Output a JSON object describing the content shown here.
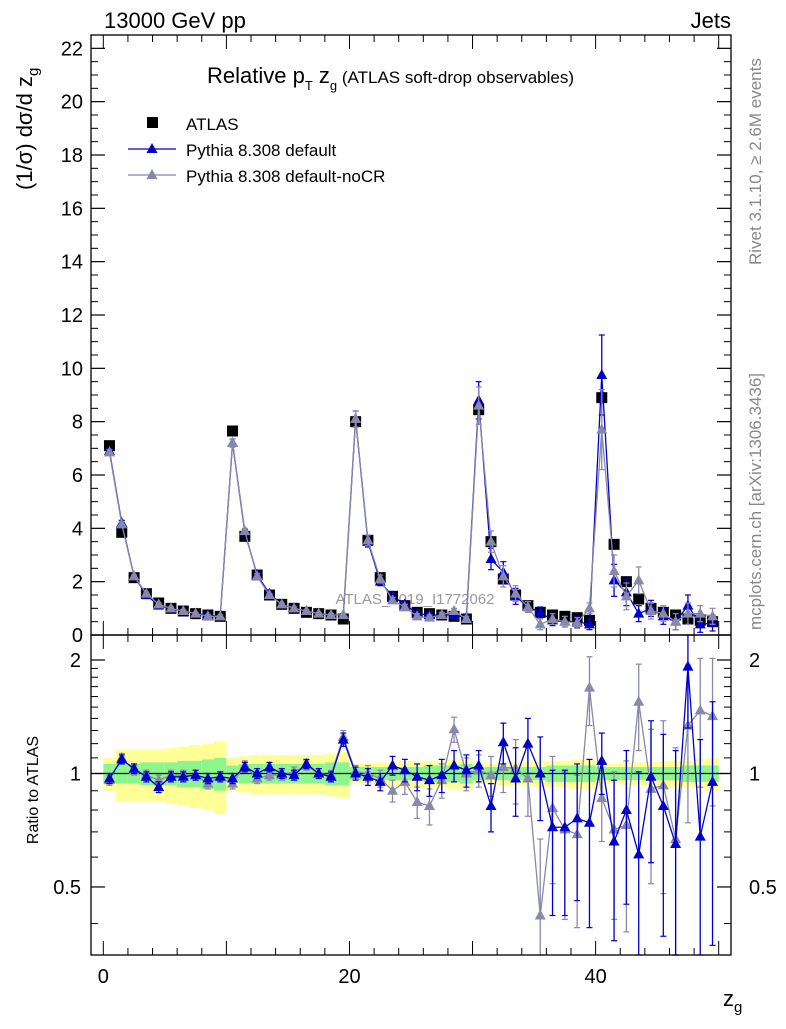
{
  "header": {
    "left": "13000 GeV pp",
    "right": "Jets"
  },
  "side_labels": {
    "rivet": "Rivet 3.1.10, ≥ 2.6M events",
    "mcplots": "mcplots.cern.ch [arXiv:1306.3436]"
  },
  "watermark": "ATLAS_2019_I1772062",
  "colors": {
    "atlas": "#000000",
    "default": "#0000cc",
    "nocr": "#8888aa",
    "band_inner": "#8cf58c",
    "band_outer": "#ffff96"
  },
  "chart_data": [
    {
      "type": "line",
      "title_main": "Relative p",
      "title_sub": "T",
      "title_mid": " z",
      "title_sub2": "g",
      "title_small": " (ATLAS soft-drop observables)",
      "ylabel_main": "(1/σ) dσ/d z",
      "ylabel_sub": "g",
      "xlim": [
        -1,
        51
      ],
      "ylim": [
        0,
        22.5
      ],
      "yticks": [
        0,
        2,
        4,
        6,
        8,
        10,
        12,
        14,
        16,
        18,
        20,
        22
      ],
      "legend_position": "top-left",
      "x": [
        0.5,
        1.5,
        2.5,
        3.5,
        4.5,
        5.5,
        6.5,
        7.5,
        8.5,
        9.5,
        10.5,
        11.5,
        12.5,
        13.5,
        14.5,
        15.5,
        16.5,
        17.5,
        18.5,
        19.5,
        20.5,
        21.5,
        22.5,
        23.5,
        24.5,
        25.5,
        26.5,
        27.5,
        28.5,
        29.5,
        30.5,
        31.5,
        32.5,
        33.5,
        34.5,
        35.5,
        36.5,
        37.5,
        38.5,
        39.5,
        40.5,
        41.5,
        42.5,
        43.5,
        44.5,
        45.5,
        46.5,
        47.5,
        48.5,
        49.5
      ],
      "series": [
        {
          "name": "ATLAS",
          "marker": "square",
          "values": [
            7.1,
            3.85,
            2.15,
            1.55,
            1.2,
            1.0,
            0.9,
            0.8,
            0.75,
            0.7,
            7.65,
            3.7,
            2.25,
            1.5,
            1.15,
            1.0,
            0.85,
            0.8,
            0.75,
            0.6,
            8.0,
            3.55,
            2.15,
            1.45,
            1.1,
            0.85,
            0.8,
            0.75,
            0.7,
            0.6,
            8.45,
            3.5,
            2.1,
            1.5,
            1.1,
            0.85,
            0.75,
            0.7,
            0.65,
            0.55,
            8.9,
            3.4,
            2.0,
            1.35,
            1.0,
            0.85,
            0.75,
            0.6,
            0.55,
            0.5
          ]
        },
        {
          "name": "Pythia 8.308 default",
          "marker": "triangle",
          "values": [
            6.9,
            4.2,
            2.2,
            1.5,
            1.1,
            1.0,
            0.9,
            0.8,
            0.75,
            0.7,
            7.2,
            3.85,
            2.25,
            1.55,
            1.15,
            1.0,
            0.9,
            0.8,
            0.75,
            0.75,
            8.1,
            3.5,
            2.0,
            1.45,
            1.15,
            0.8,
            0.75,
            0.75,
            0.75,
            0.65,
            8.8,
            2.85,
            2.35,
            1.45,
            1.05,
            0.85,
            0.55,
            0.5,
            0.5,
            0.4,
            9.75,
            2.05,
            1.6,
            0.8,
            1.0,
            0.7,
            0.5,
            1.1,
            0.4,
            0.45
          ]
        },
        {
          "name": "Pythia 8.308 default-noCR",
          "marker": "triangle",
          "values": [
            6.85,
            4.15,
            2.2,
            1.55,
            1.15,
            1.0,
            0.9,
            0.8,
            0.7,
            0.7,
            7.2,
            3.9,
            2.2,
            1.5,
            1.15,
            1.0,
            0.9,
            0.8,
            0.75,
            0.75,
            8.1,
            3.55,
            2.1,
            1.3,
            1.05,
            0.7,
            0.65,
            0.75,
            0.9,
            0.6,
            8.6,
            3.5,
            2.2,
            1.55,
            1.05,
            0.4,
            0.6,
            0.5,
            0.45,
            1.0,
            7.7,
            2.4,
            1.45,
            2.05,
            0.9,
            0.8,
            0.5,
            0.8,
            0.8,
            0.7
          ]
        }
      ],
      "errors": [
        [
          0.05,
          0.05,
          0.05,
          0.05,
          0.05,
          0.05,
          0.05,
          0.05,
          0.05,
          0.05,
          0.05,
          0.05,
          0.05,
          0.05,
          0.05,
          0.05,
          0.05,
          0.05,
          0.05,
          0.05,
          0.05,
          0.05,
          0.05,
          0.05,
          0.05,
          0.05,
          0.05,
          0.05,
          0.05,
          0.05,
          0.05,
          0.05,
          0.05,
          0.05,
          0.05,
          0.05,
          0.05,
          0.05,
          0.05,
          0.05,
          0.05,
          0.05,
          0.05,
          0.05,
          0.05,
          0.05,
          0.05,
          0.05,
          0.05,
          0.05
        ],
        [
          0.1,
          0.1,
          0.05,
          0.05,
          0.05,
          0.05,
          0.05,
          0.05,
          0.05,
          0.05,
          0.15,
          0.1,
          0.1,
          0.05,
          0.05,
          0.05,
          0.05,
          0.05,
          0.05,
          0.05,
          0.3,
          0.2,
          0.15,
          0.1,
          0.1,
          0.1,
          0.1,
          0.1,
          0.1,
          0.1,
          0.7,
          0.4,
          0.4,
          0.3,
          0.2,
          0.2,
          0.2,
          0.2,
          0.2,
          0.2,
          1.5,
          0.6,
          0.5,
          0.3,
          0.3,
          0.3,
          0.3,
          0.4,
          0.3,
          0.3
        ],
        [
          0.1,
          0.1,
          0.05,
          0.05,
          0.05,
          0.05,
          0.05,
          0.05,
          0.05,
          0.05,
          0.15,
          0.1,
          0.1,
          0.05,
          0.05,
          0.05,
          0.05,
          0.05,
          0.05,
          0.05,
          0.3,
          0.2,
          0.15,
          0.1,
          0.1,
          0.1,
          0.1,
          0.1,
          0.1,
          0.1,
          0.7,
          0.4,
          0.4,
          0.3,
          0.2,
          0.2,
          0.2,
          0.2,
          0.2,
          0.2,
          1.5,
          0.6,
          0.5,
          0.5,
          0.3,
          0.3,
          0.3,
          0.4,
          0.3,
          0.3
        ]
      ]
    },
    {
      "type": "line",
      "ylabel": "Ratio to ATLAS",
      "xlabel_main": "z",
      "xlabel_sub": "g",
      "ylim": [
        0.33,
        2.33
      ],
      "ylog": true,
      "yticks": [
        0.5,
        1,
        2
      ],
      "xticks": [
        0,
        20,
        40
      ],
      "band_inner": [
        0.06,
        0.06,
        0.06,
        0.07,
        0.07,
        0.07,
        0.08,
        0.08,
        0.09,
        0.1,
        0.05,
        0.06,
        0.06,
        0.06,
        0.06,
        0.06,
        0.06,
        0.06,
        0.07,
        0.07,
        0.04,
        0.04,
        0.04,
        0.04,
        0.04,
        0.04,
        0.05,
        0.05,
        0.05,
        0.06,
        0.04,
        0.04,
        0.04,
        0.04,
        0.04,
        0.04,
        0.05,
        0.05,
        0.05,
        0.05,
        0.04,
        0.04,
        0.04,
        0.04,
        0.04,
        0.04,
        0.04,
        0.05,
        0.05,
        0.05
      ],
      "band_outer": [
        0.1,
        0.16,
        0.16,
        0.16,
        0.16,
        0.17,
        0.18,
        0.19,
        0.2,
        0.22,
        0.1,
        0.11,
        0.12,
        0.12,
        0.12,
        0.12,
        0.12,
        0.12,
        0.13,
        0.14,
        0.06,
        0.06,
        0.07,
        0.07,
        0.08,
        0.08,
        0.08,
        0.08,
        0.09,
        0.09,
        0.06,
        0.06,
        0.07,
        0.07,
        0.07,
        0.08,
        0.08,
        0.08,
        0.09,
        0.09,
        0.06,
        0.06,
        0.07,
        0.07,
        0.07,
        0.08,
        0.08,
        0.08,
        0.09,
        0.1
      ],
      "series": [
        {
          "name": "Pythia 8.308 default",
          "values": [
            0.97,
            1.09,
            1.03,
            0.98,
            0.92,
            0.98,
            0.98,
            0.99,
            0.97,
            0.98,
            0.97,
            1.04,
            1.0,
            1.04,
            1.0,
            0.99,
            1.06,
            1.0,
            0.98,
            1.23,
            1.0,
            0.98,
            0.95,
            1.05,
            1.02,
            0.98,
            0.96,
            0.99,
            1.05,
            1.02,
            1.05,
            0.82,
            1.21,
            0.97,
            1.2,
            1.0,
            0.72,
            0.72,
            0.76,
            0.74,
            1.08,
            0.66,
            0.8,
            0.61,
            0.98,
            0.82,
            0.65,
            1.92,
            0.68,
            0.95
          ]
        },
        {
          "name": "Pythia 8.308 default-noCR",
          "values": [
            0.96,
            1.1,
            1.02,
            0.99,
            0.96,
            0.99,
            0.99,
            0.99,
            0.94,
            0.98,
            0.94,
            1.05,
            0.97,
            0.99,
            0.99,
            1.01,
            1.05,
            1.0,
            0.99,
            1.25,
            1.01,
            1.0,
            0.97,
            0.9,
            0.95,
            0.84,
            0.82,
            0.96,
            1.31,
            1.0,
            1.02,
            0.99,
            1.04,
            1.03,
            0.97,
            0.42,
            0.81,
            0.71,
            0.69,
            1.69,
            0.86,
            0.71,
            0.73,
            1.55,
            0.91,
            0.93,
            0.67,
            1.34,
            1.47,
            1.42
          ]
        }
      ],
      "errors": [
        [
          0.03,
          0.03,
          0.03,
          0.03,
          0.03,
          0.03,
          0.03,
          0.03,
          0.03,
          0.03,
          0.03,
          0.03,
          0.03,
          0.03,
          0.03,
          0.03,
          0.03,
          0.03,
          0.03,
          0.05,
          0.04,
          0.05,
          0.05,
          0.06,
          0.07,
          0.08,
          0.09,
          0.1,
          0.1,
          0.1,
          0.1,
          0.12,
          0.15,
          0.2,
          0.2,
          0.25,
          0.3,
          0.3,
          0.3,
          0.35,
          0.2,
          0.3,
          0.35,
          0.4,
          0.4,
          0.45,
          0.5,
          0.6,
          0.55,
          0.6
        ],
        [
          0.03,
          0.03,
          0.03,
          0.03,
          0.03,
          0.03,
          0.03,
          0.03,
          0.03,
          0.03,
          0.03,
          0.03,
          0.03,
          0.03,
          0.03,
          0.03,
          0.03,
          0.03,
          0.03,
          0.05,
          0.04,
          0.05,
          0.05,
          0.06,
          0.07,
          0.08,
          0.09,
          0.1,
          0.1,
          0.1,
          0.1,
          0.12,
          0.15,
          0.2,
          0.2,
          0.25,
          0.3,
          0.3,
          0.3,
          0.35,
          0.2,
          0.3,
          0.35,
          0.4,
          0.4,
          0.45,
          0.5,
          0.6,
          0.55,
          0.6
        ]
      ]
    }
  ]
}
